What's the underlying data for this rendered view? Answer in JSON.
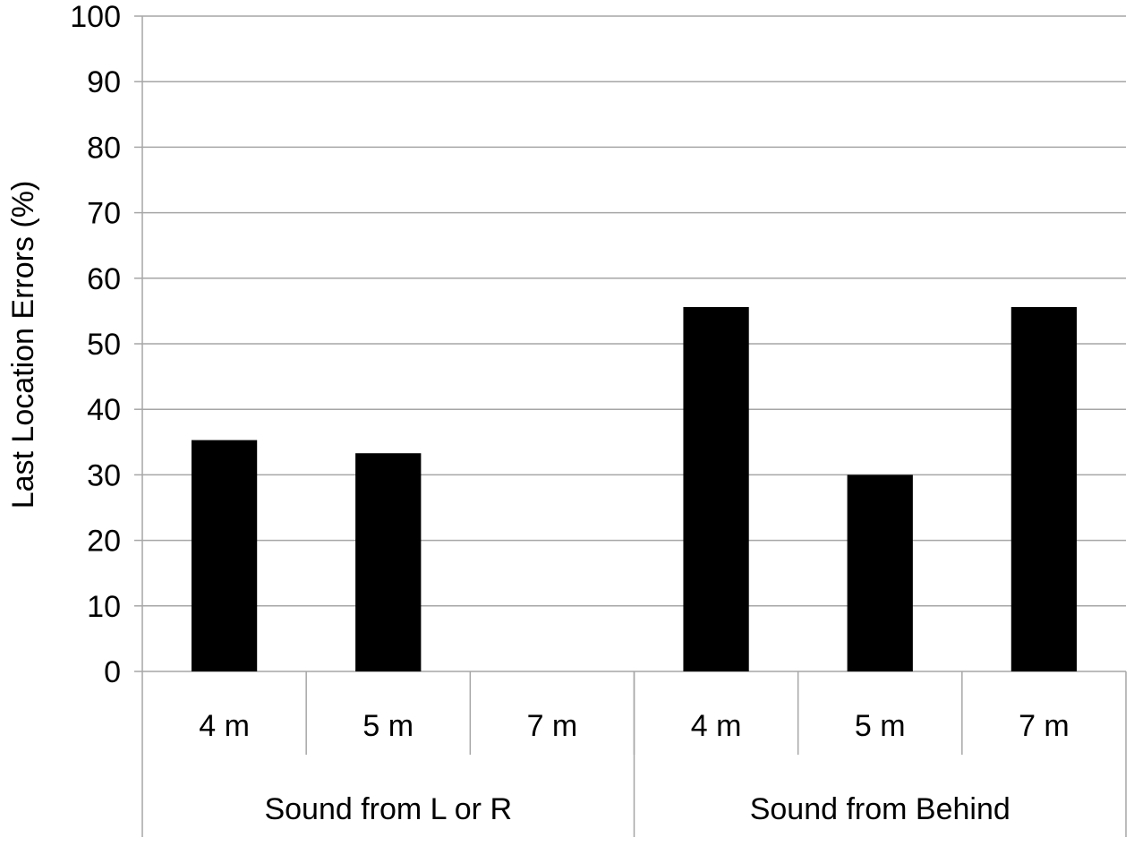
{
  "chart_data": {
    "type": "bar",
    "title": "",
    "xlabel": "",
    "ylabel": "Last Location Errors (%)",
    "ylim": [
      0,
      100
    ],
    "yticks": [
      "0",
      "10",
      "20",
      "30",
      "40",
      "50",
      "60",
      "70",
      "80",
      "90",
      "100"
    ],
    "categories": [
      "4 m",
      "5 m",
      "7 m",
      "4 m",
      "5 m",
      "7 m"
    ],
    "groups": [
      {
        "label": "Sound from L or R",
        "span": 3
      },
      {
        "label": "Sound from Behind",
        "span": 3
      }
    ],
    "values": [
      35.3,
      33.3,
      0,
      55.6,
      30.0,
      55.6
    ],
    "bar_color": "#000000",
    "grid": true,
    "grid_color": "#a6a6a6",
    "legend": "none"
  }
}
